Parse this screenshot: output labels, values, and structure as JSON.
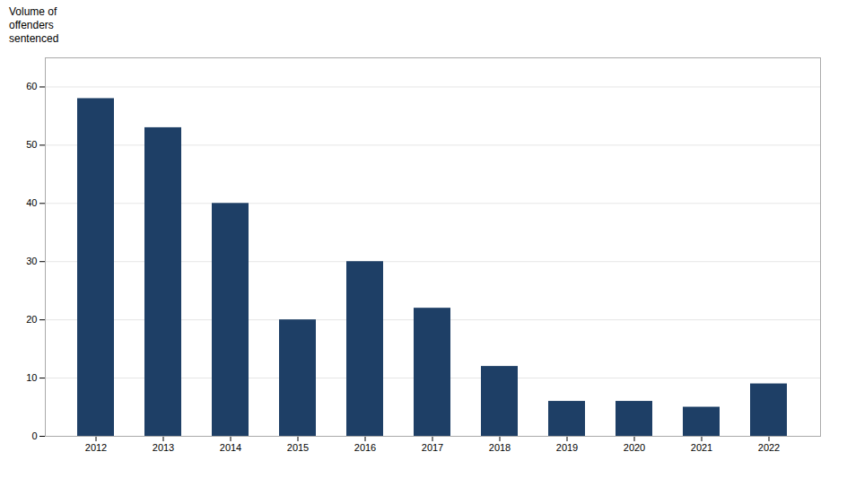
{
  "chart_data": {
    "type": "bar",
    "ylabel": "Volume of\noffenders\nsentenced",
    "categories": [
      "2012",
      "2013",
      "2014",
      "2015",
      "2016",
      "2017",
      "2018",
      "2019",
      "2020",
      "2021",
      "2022"
    ],
    "values": [
      58,
      53,
      40,
      20,
      30,
      22,
      12,
      6,
      6,
      5,
      9
    ],
    "color": "#1e3f66",
    "ylim": [
      0,
      65
    ],
    "yticks": [
      0,
      10,
      20,
      30,
      40,
      50,
      60
    ],
    "grid": true
  }
}
